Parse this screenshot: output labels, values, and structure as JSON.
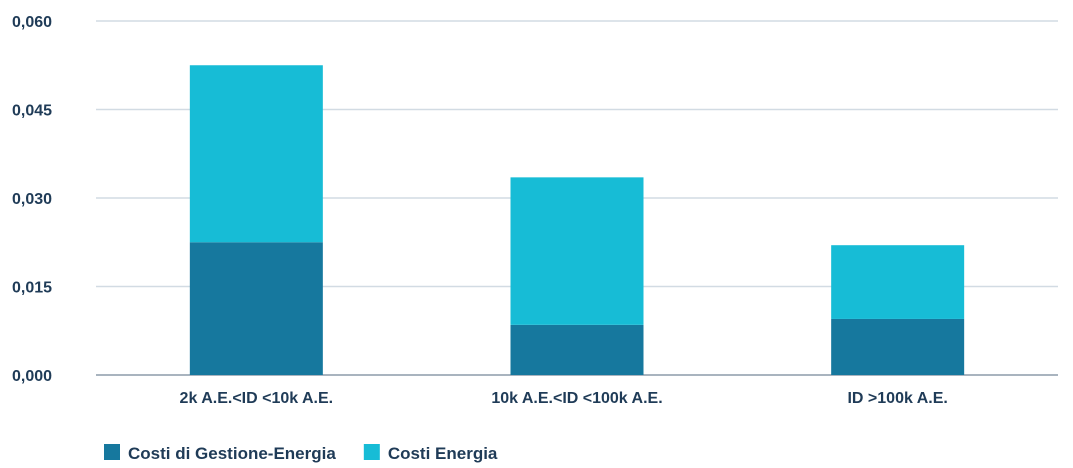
{
  "chart_data": {
    "type": "bar",
    "stacked": true,
    "categories": [
      "2k A.E.<ID <10k A.E.",
      "10k A.E.<ID <100k A.E.",
      "ID >100k A.E."
    ],
    "series": [
      {
        "name": "Costi di Gestione-Energia",
        "values": [
          0.0225,
          0.0085,
          0.0095
        ],
        "color": "#16789e"
      },
      {
        "name": "Costi Energia",
        "values": [
          0.03,
          0.025,
          0.0125
        ],
        "color": "#17bcd6"
      }
    ],
    "y_ticks": [
      "0,000",
      "0,015",
      "0,030",
      "0,045",
      "0,060"
    ],
    "ylim": [
      0,
      0.06
    ],
    "grid": true,
    "legend_position": "bottom-left"
  }
}
